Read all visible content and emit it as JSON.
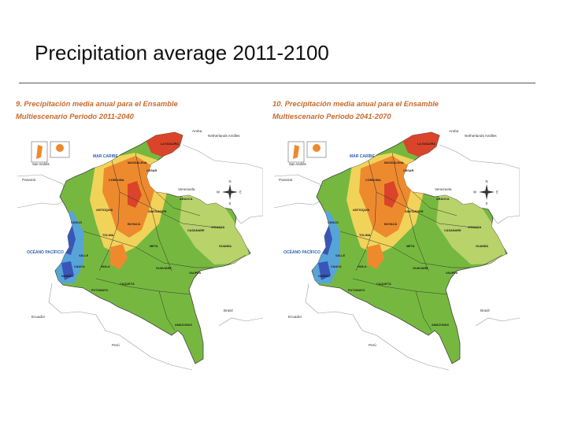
{
  "slide": {
    "title": "Precipitation average 2011-2100"
  },
  "colors": {
    "sea": "#ffffff",
    "land_other": "#ffffff",
    "wet": "#3a55b8",
    "humid": "#57a4d8",
    "green": "#76b83f",
    "light_green": "#b7d36a",
    "yellow": "#f1d35a",
    "orange": "#ee8a2e",
    "red": "#d9442a",
    "title_orange": "#c86a2c"
  },
  "panels": [
    {
      "title_line1": "9. Precipitación media anual para el Ensamble",
      "title_line2": "Multiescenario Periodo 2011-2040"
    },
    {
      "title_line1": "10. Precipitación media anual para el Ensamble",
      "title_line2": "Multiescenario Periodo 2041-2070"
    }
  ],
  "map_labels": {
    "aruba": "Aruba",
    "antilles": "Netherlands Antilles",
    "caribbean": "MAR CARIBE",
    "panama": "Panamá",
    "venezuela": "Venezuela",
    "pacific": "OCÉANO PACÍFICO",
    "ecuador": "Ecuador",
    "peru": "Perú",
    "brasil": "Brasil",
    "compass_n": "N",
    "compass_s": "S",
    "compass_e": "E",
    "compass_w": "W",
    "inset_san_andres": "San Andrés",
    "departments": {
      "guajira": "LA GUAJIRA",
      "magdalena": "MAGDALENA",
      "cesar": "CESAR",
      "cordoba": "CÓRDOBA",
      "antioquia": "ANTIOQUIA",
      "santander": "SANTANDER",
      "arauca": "ARAUCA",
      "casanare": "CASANARE",
      "vichada": "VICHADA",
      "boyaca": "BOYACÁ",
      "choco": "CHOCÓ",
      "valle": "VALLE",
      "cauca": "CAUCA",
      "narino": "NARIÑO",
      "huila": "HUILA",
      "meta": "META",
      "guainia": "GUAINÍA",
      "guaviare": "GUAVIARE",
      "vaupes": "VAUPÉS",
      "caqueta": "CAQUETÁ",
      "putumayo": "PUTUMAYO",
      "amazonas": "AMAZONAS",
      "tolima": "TOLIMA"
    }
  }
}
